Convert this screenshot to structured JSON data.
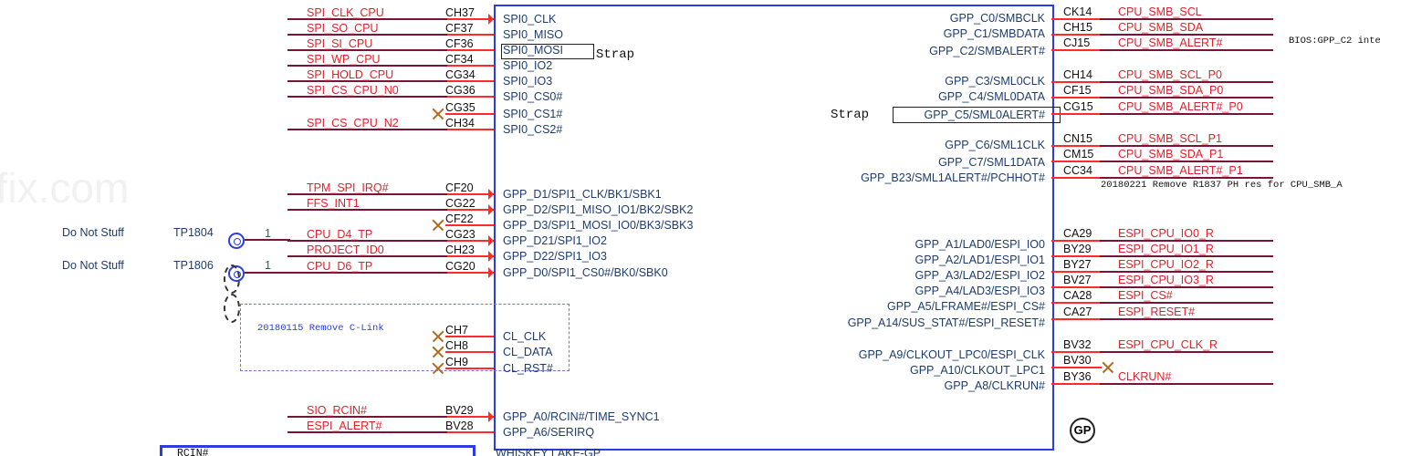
{
  "watermark": "afix.com",
  "chip": {
    "bottom_label": "WHISKEY LAKE-GP",
    "badge": "GP"
  },
  "left_pins": [
    {
      "net": "SPI_CLK_CPU",
      "pin": "CH37",
      "name": "SPI0_CLK",
      "arrow": true
    },
    {
      "net": "SPI_SO_CPU",
      "pin": "CF37",
      "name": "SPI0_MISO"
    },
    {
      "net": "SPI_SI_CPU",
      "pin": "CF36",
      "name": "SPI0_MOSI",
      "strap": true
    },
    {
      "net": "SPI_WP_CPU",
      "pin": "CF34",
      "name": "SPI0_IO2"
    },
    {
      "net": "SPI_HOLD_CPU",
      "pin": "CG34",
      "name": "SPI0_IO3"
    },
    {
      "net": "SPI_CS_CPU_N0",
      "pin": "CG36",
      "name": "SPI0_CS0#"
    },
    {
      "net": "",
      "pin": "CG35",
      "name": "SPI0_CS1#",
      "nc": true
    },
    {
      "net": "SPI_CS_CPU_N2",
      "pin": "CH34",
      "name": "SPI0_CS2#"
    },
    {
      "net": "TPM_SPI_IRQ#",
      "pin": "CF20",
      "name": "GPP_D1/SPI1_CLK/BK1/SBK1",
      "arrow": true
    },
    {
      "net": "FFS_INT1",
      "pin": "CG22",
      "name": "GPP_D2/SPI1_MISO_IO1/BK2/SBK2",
      "arrow": true
    },
    {
      "net": "",
      "pin": "CF22",
      "name": "GPP_D3/SPI1_MOSI_IO0/BK3/SBK3",
      "nc": true
    },
    {
      "net": "CPU_D4_TP",
      "pin": "CG23",
      "name": "GPP_D21/SPI1_IO2",
      "arrow": true
    },
    {
      "net": "PROJECT_ID0",
      "pin": "CH23",
      "name": "GPP_D22/SPI1_IO3",
      "arrow": true
    },
    {
      "net": "CPU_D6_TP",
      "pin": "CG20",
      "name": "GPP_D0/SPI1_CS0#/BK0/SBK0",
      "arrow": true
    },
    {
      "net": "",
      "pin": "CH7",
      "name": "CL_CLK",
      "nc": true
    },
    {
      "net": "",
      "pin": "CH8",
      "name": "CL_DATA",
      "nc": true
    },
    {
      "net": "",
      "pin": "CH9",
      "name": "CL_RST#",
      "nc": true
    },
    {
      "net": "SIO_RCIN#",
      "pin": "BV29",
      "name": "GPP_A0/RCIN#/TIME_SYNC1",
      "arrow": true
    },
    {
      "net": "ESPI_ALERT#",
      "pin": "BV28",
      "name": "GPP_A6/SERIRQ"
    }
  ],
  "right_pins": [
    {
      "net": "CPU_SMB_SCL",
      "pin": "CK14",
      "name": "GPP_C0/SMBCLK"
    },
    {
      "net": "CPU_SMB_SDA",
      "pin": "CH15",
      "name": "GPP_C1/SMBDATA"
    },
    {
      "net": "CPU_SMB_ALERT#",
      "pin": "CJ15",
      "name": "GPP_C2/SMBALERT#"
    },
    {
      "net": "CPU_SMB_SCL_P0",
      "pin": "CH14",
      "name": "GPP_C3/SML0CLK"
    },
    {
      "net": "CPU_SMB_SDA_P0",
      "pin": "CF15",
      "name": "GPP_C4/SML0DATA"
    },
    {
      "net": "CPU_SMB_ALERT#_P0",
      "pin": "CG15",
      "name": "GPP_C5/SML0ALERT#",
      "strap": true
    },
    {
      "net": "CPU_SMB_SCL_P1",
      "pin": "CN15",
      "name": "GPP_C6/SML1CLK"
    },
    {
      "net": "CPU_SMB_SDA_P1",
      "pin": "CM15",
      "name": "GPP_C7/SML1DATA"
    },
    {
      "net": "CPU_SMB_ALERT#_P1",
      "pin": "CC34",
      "name": "GPP_B23/SML1ALERT#/PCHHOT#"
    },
    {
      "net": "ESPI_CPU_IO0_R",
      "pin": "CA29",
      "name": "GPP_A1/LAD0/ESPI_IO0"
    },
    {
      "net": "ESPI_CPU_IO1_R",
      "pin": "BY29",
      "name": "GPP_A2/LAD1/ESPI_IO1"
    },
    {
      "net": "ESPI_CPU_IO2_R",
      "pin": "BY27",
      "name": "GPP_A3/LAD2/ESPI_IO2"
    },
    {
      "net": "ESPI_CPU_IO3_R",
      "pin": "BV27",
      "name": "GPP_A4/LAD3/ESPI_IO3"
    },
    {
      "net": "ESPI_CS#",
      "pin": "CA28",
      "name": "GPP_A5/LFRAME#/ESPI_CS#"
    },
    {
      "net": "ESPI_RESET#",
      "pin": "CA27",
      "name": "GPP_A14/SUS_STAT#/ESPI_RESET#"
    },
    {
      "net": "ESPI_CPU_CLK_R",
      "pin": "BV32",
      "name": "GPP_A9/CLKOUT_LPC0/ESPI_CLK"
    },
    {
      "net": "",
      "pin": "BV30",
      "name": "GPP_A10/CLKOUT_LPC1",
      "nc": true
    },
    {
      "net": "CLKRUN#",
      "pin": "BY36",
      "name": "GPP_A8/CLKRUN#"
    }
  ],
  "strap_label": "Strap",
  "test_points": [
    {
      "note": "Do Not Stuff",
      "ref": "TP1804",
      "pin": "1"
    },
    {
      "note": "Do Not Stuff",
      "ref": "TP1806",
      "pin": "1"
    }
  ],
  "notes": {
    "clink": "20180115 Remove C-Link",
    "bios": "BIOS:GPP_C2 inte",
    "smb": "20180221 Remove R1837 PH res for CPU_SMB_A"
  },
  "rcin_box_label": "RCIN#"
}
